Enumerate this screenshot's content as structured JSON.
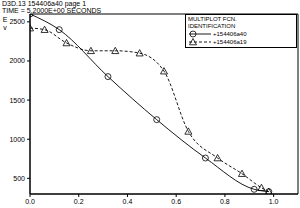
{
  "chart_data": {
    "type": "line",
    "title": "D3D.13 154406a40 page 1",
    "subtitle": "TIME = 5.2000E+00 SECONDS",
    "y_label": "Ev",
    "legend_title": [
      "MULTIPLOT FCN.",
      "IDENTIFICATION"
    ],
    "legend": "upper right",
    "xlim": [
      0,
      1.1
    ],
    "xticks": [
      {
        "value": 0,
        "label": "0.0"
      },
      {
        "value": 0.2,
        "label": "0.2"
      },
      {
        "value": 0.4,
        "label": "0.4"
      },
      {
        "value": 0.6,
        "label": "0.6"
      },
      {
        "value": 0.8,
        "label": "0.8"
      },
      {
        "value": 1,
        "label": "1.0"
      }
    ],
    "ylim": [
      300,
      2600
    ],
    "yticks": [
      500,
      1000,
      1500,
      2000,
      2500
    ],
    "series": [
      {
        "name": "+154406a40",
        "color": "#000000",
        "marker": "circle",
        "line_style": "solid",
        "x": [
          0,
          0.12,
          0.32,
          0.52,
          0.72,
          0.92,
          0.98
        ],
        "values": [
          2600,
          2400,
          1800,
          1250,
          760,
          360,
          330
        ]
      },
      {
        "name": "+154406a19",
        "color": "#000000",
        "marker": "triangle",
        "line_style": "dashed",
        "x": [
          0,
          0.06,
          0.15,
          0.25,
          0.35,
          0.45,
          0.55,
          0.65,
          0.77,
          0.87,
          0.95,
          0.98
        ],
        "values": [
          2420,
          2400,
          2230,
          2130,
          2130,
          2100,
          1870,
          1100,
          760,
          560,
          380,
          330
        ]
      }
    ]
  }
}
